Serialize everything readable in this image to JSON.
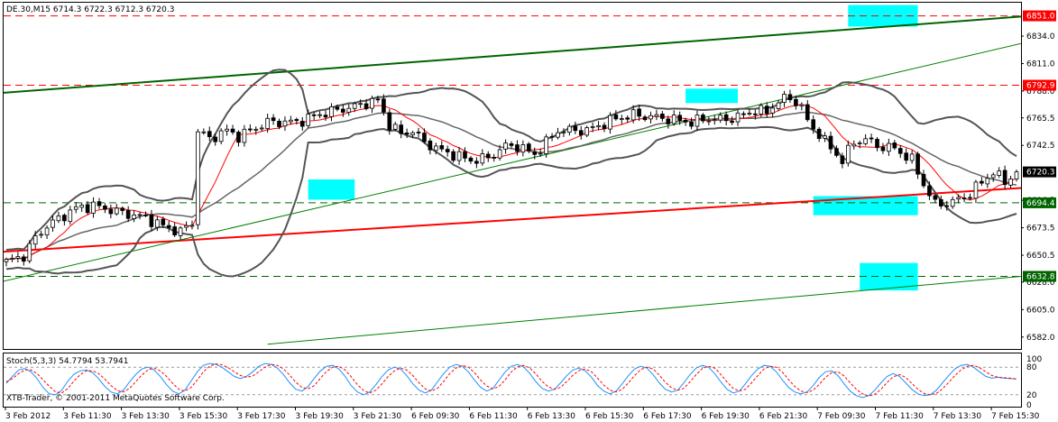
{
  "chart_data": [
    {
      "type": "candlestick",
      "header": "DE.30,M15  6714.3 6722.3 6712.3 6720.3",
      "symbol": "DE.30",
      "timeframe": "M15",
      "ohlc_last": {
        "open": 6714.3,
        "high": 6722.3,
        "low": 6712.3,
        "close": 6720.3
      },
      "ylim": [
        6572,
        6862
      ],
      "y_ticks": [
        "6834.0",
        "6811.0",
        "6788.0",
        "6765.5",
        "6742.5",
        "6696.5",
        "6673.5",
        "6650.5",
        "6628.0",
        "6605.0",
        "6582.0"
      ],
      "x_ticks": [
        "3 Feb 2012",
        "3 Feb 11:30",
        "3 Feb 13:30",
        "3 Feb 15:30",
        "3 Feb 17:30",
        "3 Feb 19:30",
        "3 Feb 21:30",
        "6 Feb 09:30",
        "6 Feb 11:30",
        "6 Feb 13:30",
        "6 Feb 15:30",
        "6 Feb 17:30",
        "6 Feb 19:30",
        "6 Feb 21:30",
        "7 Feb 09:30",
        "7 Feb 11:30",
        "7 Feb 13:30",
        "7 Feb 15:30"
      ],
      "price_labels": [
        {
          "text": "6851.0",
          "value": 6851.0,
          "color": "#ff0000"
        },
        {
          "text": "6792.9",
          "value": 6792.9,
          "color": "#ff0000"
        },
        {
          "text": "6720.3",
          "value": 6720.3,
          "color": "#000000"
        },
        {
          "text": "6694.4",
          "value": 6694.4,
          "color": "#006400"
        },
        {
          "text": "6632.8",
          "value": 6632.8,
          "color": "#006400"
        }
      ],
      "horizontal_levels": [
        {
          "value": 6851.0,
          "color": "#ff0000",
          "style": "dashed"
        },
        {
          "value": 6792.9,
          "color": "#ff0000",
          "style": "dashed"
        },
        {
          "value": 6694.4,
          "color": "#006400",
          "style": "dashed"
        },
        {
          "value": 6632.8,
          "color": "#006400",
          "style": "dashed"
        }
      ],
      "bar_count": 175,
      "close_anchors": [
        [
          0,
          6645
        ],
        [
          3,
          6650
        ],
        [
          5,
          6665
        ],
        [
          7,
          6675
        ],
        [
          12,
          6690
        ],
        [
          15,
          6692
        ],
        [
          20,
          6686
        ],
        [
          24,
          6682
        ],
        [
          27,
          6675
        ],
        [
          30,
          6670
        ],
        [
          32,
          6678
        ],
        [
          33,
          6755
        ],
        [
          35,
          6748
        ],
        [
          38,
          6755
        ],
        [
          40,
          6750
        ],
        [
          45,
          6762
        ],
        [
          50,
          6762
        ],
        [
          55,
          6770
        ],
        [
          60,
          6775
        ],
        [
          62,
          6778
        ],
        [
          64,
          6780
        ],
        [
          66,
          6760
        ],
        [
          68,
          6752
        ],
        [
          70,
          6755
        ],
        [
          72,
          6745
        ],
        [
          75,
          6738
        ],
        [
          80,
          6730
        ],
        [
          83,
          6732
        ],
        [
          86,
          6742
        ],
        [
          88,
          6742
        ],
        [
          91,
          6735
        ],
        [
          93,
          6745
        ],
        [
          95,
          6755
        ],
        [
          100,
          6755
        ],
        [
          105,
          6765
        ],
        [
          108,
          6768
        ],
        [
          112,
          6766
        ],
        [
          118,
          6762
        ],
        [
          121,
          6765
        ],
        [
          124,
          6764
        ],
        [
          127,
          6768
        ],
        [
          129,
          6772
        ],
        [
          131,
          6770
        ],
        [
          133,
          6780
        ],
        [
          135,
          6782
        ],
        [
          137,
          6775
        ],
        [
          138,
          6762
        ],
        [
          140,
          6752
        ],
        [
          142,
          6740
        ],
        [
          144,
          6730
        ],
        [
          146,
          6745
        ],
        [
          148,
          6748
        ],
        [
          150,
          6742
        ],
        [
          153,
          6740
        ],
        [
          156,
          6730
        ],
        [
          158,
          6710
        ],
        [
          160,
          6693
        ],
        [
          163,
          6695
        ],
        [
          166,
          6702
        ],
        [
          168,
          6712
        ],
        [
          170,
          6720
        ],
        [
          172,
          6712
        ],
        [
          174,
          6720.3
        ]
      ],
      "moving_average_period": 8,
      "trendlines": [
        {
          "from": [
            -2,
            6653
          ],
          "to": [
            182,
            6709
          ],
          "color": "#ff0000"
        },
        {
          "from": [
            -2,
            6786
          ],
          "to": [
            182,
            6853
          ],
          "color": "#006400"
        },
        {
          "from": [
            -2,
            6627
          ],
          "to": [
            182,
            6836
          ],
          "color": "#008000"
        },
        {
          "from": [
            45,
            6576
          ],
          "to": [
            182,
            6636
          ],
          "color": "#008000"
        }
      ],
      "highlight_boxes": [
        {
          "x1": 52,
          "x2": 60,
          "top": 6714,
          "bottom": 6697
        },
        {
          "x1": 117,
          "x2": 126,
          "top": 6790,
          "bottom": 6778
        },
        {
          "x1": 145,
          "x2": 157,
          "top": 6860,
          "bottom": 6842
        },
        {
          "x1": 139,
          "x2": 157,
          "top": 6700,
          "bottom": 6684
        },
        {
          "x1": 147,
          "x2": 157,
          "top": 6644,
          "bottom": 6621
        }
      ]
    },
    {
      "type": "line",
      "title": "Stoch(5,3,3) 54.7794 53.7941",
      "ylim": [
        0,
        100
      ],
      "y_ticks": [
        "100",
        "80",
        "20",
        "0"
      ],
      "levels": [
        20,
        80
      ],
      "main": [
        45,
        60,
        74,
        77,
        70,
        55,
        35,
        22,
        20,
        30,
        50,
        65,
        72,
        74,
        68,
        55,
        38,
        26,
        22,
        30,
        48,
        64,
        76,
        80,
        74,
        60,
        42,
        28,
        22,
        30,
        50,
        70,
        84,
        88,
        86,
        80,
        70,
        60,
        55,
        60,
        70,
        82,
        88,
        86,
        78,
        64,
        46,
        32,
        28,
        38,
        56,
        72,
        82,
        84,
        76,
        60,
        40,
        26,
        20,
        26,
        42,
        60,
        74,
        80,
        76,
        62,
        44,
        30,
        24,
        30,
        48,
        66,
        80,
        86,
        82,
        70,
        52,
        36,
        28,
        34,
        52,
        70,
        82,
        86,
        80,
        66,
        48,
        34,
        28,
        32,
        46,
        62,
        74,
        78,
        72,
        58,
        40,
        28,
        22,
        28,
        44,
        62,
        76,
        82,
        78,
        64,
        46,
        32,
        26,
        30,
        46,
        64,
        78,
        84,
        80,
        66,
        48,
        32,
        24,
        28,
        44,
        62,
        76,
        84,
        82,
        70,
        52,
        36,
        26,
        22,
        26,
        40,
        58,
        70,
        72,
        62,
        44,
        28,
        18,
        14,
        18,
        30,
        46,
        60,
        66,
        60,
        46,
        32,
        22,
        18,
        20,
        30,
        46,
        62,
        76,
        84,
        86,
        80,
        70,
        60,
        56,
        58,
        56,
        55,
        54.78
      ],
      "signal": [
        48,
        55,
        66,
        74,
        74,
        66,
        52,
        38,
        26,
        24,
        34,
        50,
        64,
        72,
        72,
        66,
        54,
        40,
        29,
        26,
        34,
        48,
        63,
        74,
        78,
        72,
        60,
        45,
        32,
        28,
        36,
        52,
        70,
        82,
        87,
        85,
        79,
        70,
        62,
        58,
        61,
        70,
        80,
        86,
        84,
        76,
        63,
        47,
        36,
        33,
        40,
        56,
        71,
        80,
        82,
        74,
        59,
        42,
        29,
        24,
        30,
        44,
        60,
        72,
        78,
        74,
        62,
        46,
        33,
        28,
        34,
        49,
        66,
        78,
        84,
        80,
        68,
        52,
        39,
        33,
        38,
        53,
        70,
        81,
        84,
        78,
        65,
        49,
        37,
        32,
        36,
        49,
        63,
        73,
        76,
        70,
        56,
        41,
        30,
        26,
        32,
        46,
        62,
        75,
        80,
        76,
        63,
        47,
        35,
        30,
        34,
        48,
        64,
        77,
        82,
        78,
        64,
        48,
        34,
        28,
        32,
        46,
        62,
        76,
        82,
        80,
        69,
        53,
        38,
        28,
        25,
        30,
        43,
        58,
        68,
        70,
        61,
        46,
        32,
        22,
        17,
        21,
        32,
        47,
        59,
        64,
        58,
        45,
        32,
        23,
        20,
        23,
        33,
        47,
        62,
        74,
        82,
        84,
        79,
        70,
        62,
        58,
        57,
        56,
        53.79
      ]
    }
  ],
  "footer": {
    "copyright": "XTB-Trader, © 2001-2011 MetaQuotes Software Corp."
  }
}
